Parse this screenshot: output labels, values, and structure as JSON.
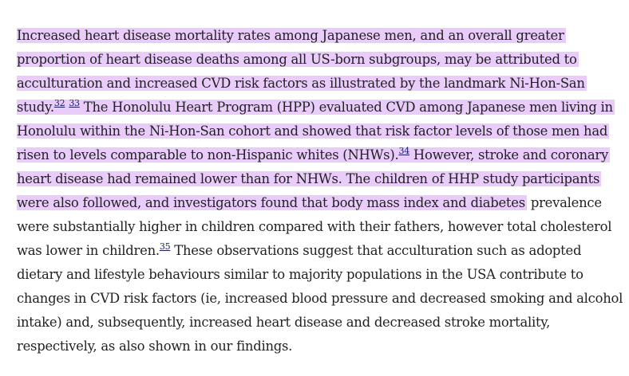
{
  "paragraph": {
    "l1": "Increased heart disease mortality rates among Japanese men, and an overall greater",
    "l2": "proportion of heart disease deaths among all US-born subgroups, may be attributed to",
    "l3": "acculturation and increased CVD risk factors as illustrated by the landmark Ni-Hon-San",
    "l4a": "study.",
    "ref32": "32",
    "ref33": "33",
    "l4b": " The Honolulu Heart Program (HPP) evaluated CVD among Japanese men living in",
    "l5": "Honolulu within the Ni-Hon-San cohort and showed that risk factor levels of those men had",
    "l6a": "risen to levels comparable to non-Hispanic whites (NHWs).",
    "ref34": "34",
    "l6b": " However, stroke and coronary",
    "l7": "heart disease had remained lower than for NHWs. The children of HHP study participants",
    "l8a": "were also followed, and investigators found that body mass index and diabetes",
    "l8b": " prevalence",
    "l9": "were substantially higher in children compared with their fathers, however total cholesterol",
    "l10a": "was lower in children.",
    "ref35": "35",
    "l10b": " These observations suggest that acculturation such as adopted",
    "l11": "dietary and lifestyle behaviours similar to majority populations in the USA contribute to",
    "l12": "changes in CVD risk factors (ie, increased blood pressure and decreased smoking and alcohol",
    "l13": "intake) and, subsequently, increased heart disease and decreased stroke mortality,",
    "l14": "respectively, as also shown in our findings."
  },
  "colors": {
    "highlight": "#e9ccf9",
    "text": "#222222",
    "link": "#1a1a6e"
  }
}
